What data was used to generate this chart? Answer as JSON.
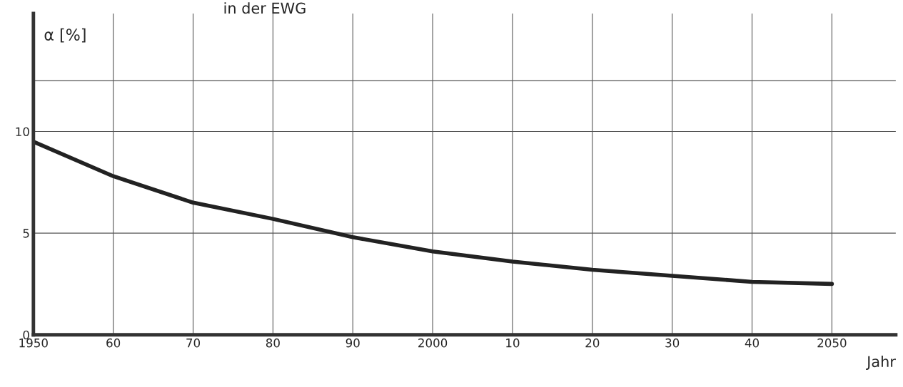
{
  "chart_data": {
    "type": "line",
    "title": "in der EWG",
    "ylabel": "α [%]",
    "xlabel": "Jahr",
    "x": [
      1950,
      1960,
      1970,
      1980,
      1990,
      2000,
      2010,
      2020,
      2030,
      2040,
      2050
    ],
    "series": [
      {
        "color": "#222222",
        "values": [
          9.5,
          7.8,
          6.5,
          5.7,
          4.8,
          4.1,
          3.6,
          3.2,
          2.9,
          2.6,
          2.5
        ]
      }
    ],
    "xlim": [
      1950,
      2058
    ],
    "ylim": [
      0,
      15.8
    ],
    "xticks": [
      1950,
      {
        "value": 1960,
        "label": "60"
      },
      {
        "value": 1970,
        "label": "70"
      },
      {
        "value": 1980,
        "label": "80"
      },
      {
        "value": 1990,
        "label": "90"
      },
      2000,
      {
        "value": 2010,
        "label": "10"
      },
      {
        "value": 2020,
        "label": "20"
      },
      {
        "value": 2030,
        "label": "30"
      },
      {
        "value": 2040,
        "label": "40"
      },
      2050
    ],
    "yticks": [
      0,
      5,
      10,
      {
        "value": 12.5,
        "label": null
      }
    ],
    "grid": true,
    "marker": "none",
    "line_style": "solid"
  }
}
